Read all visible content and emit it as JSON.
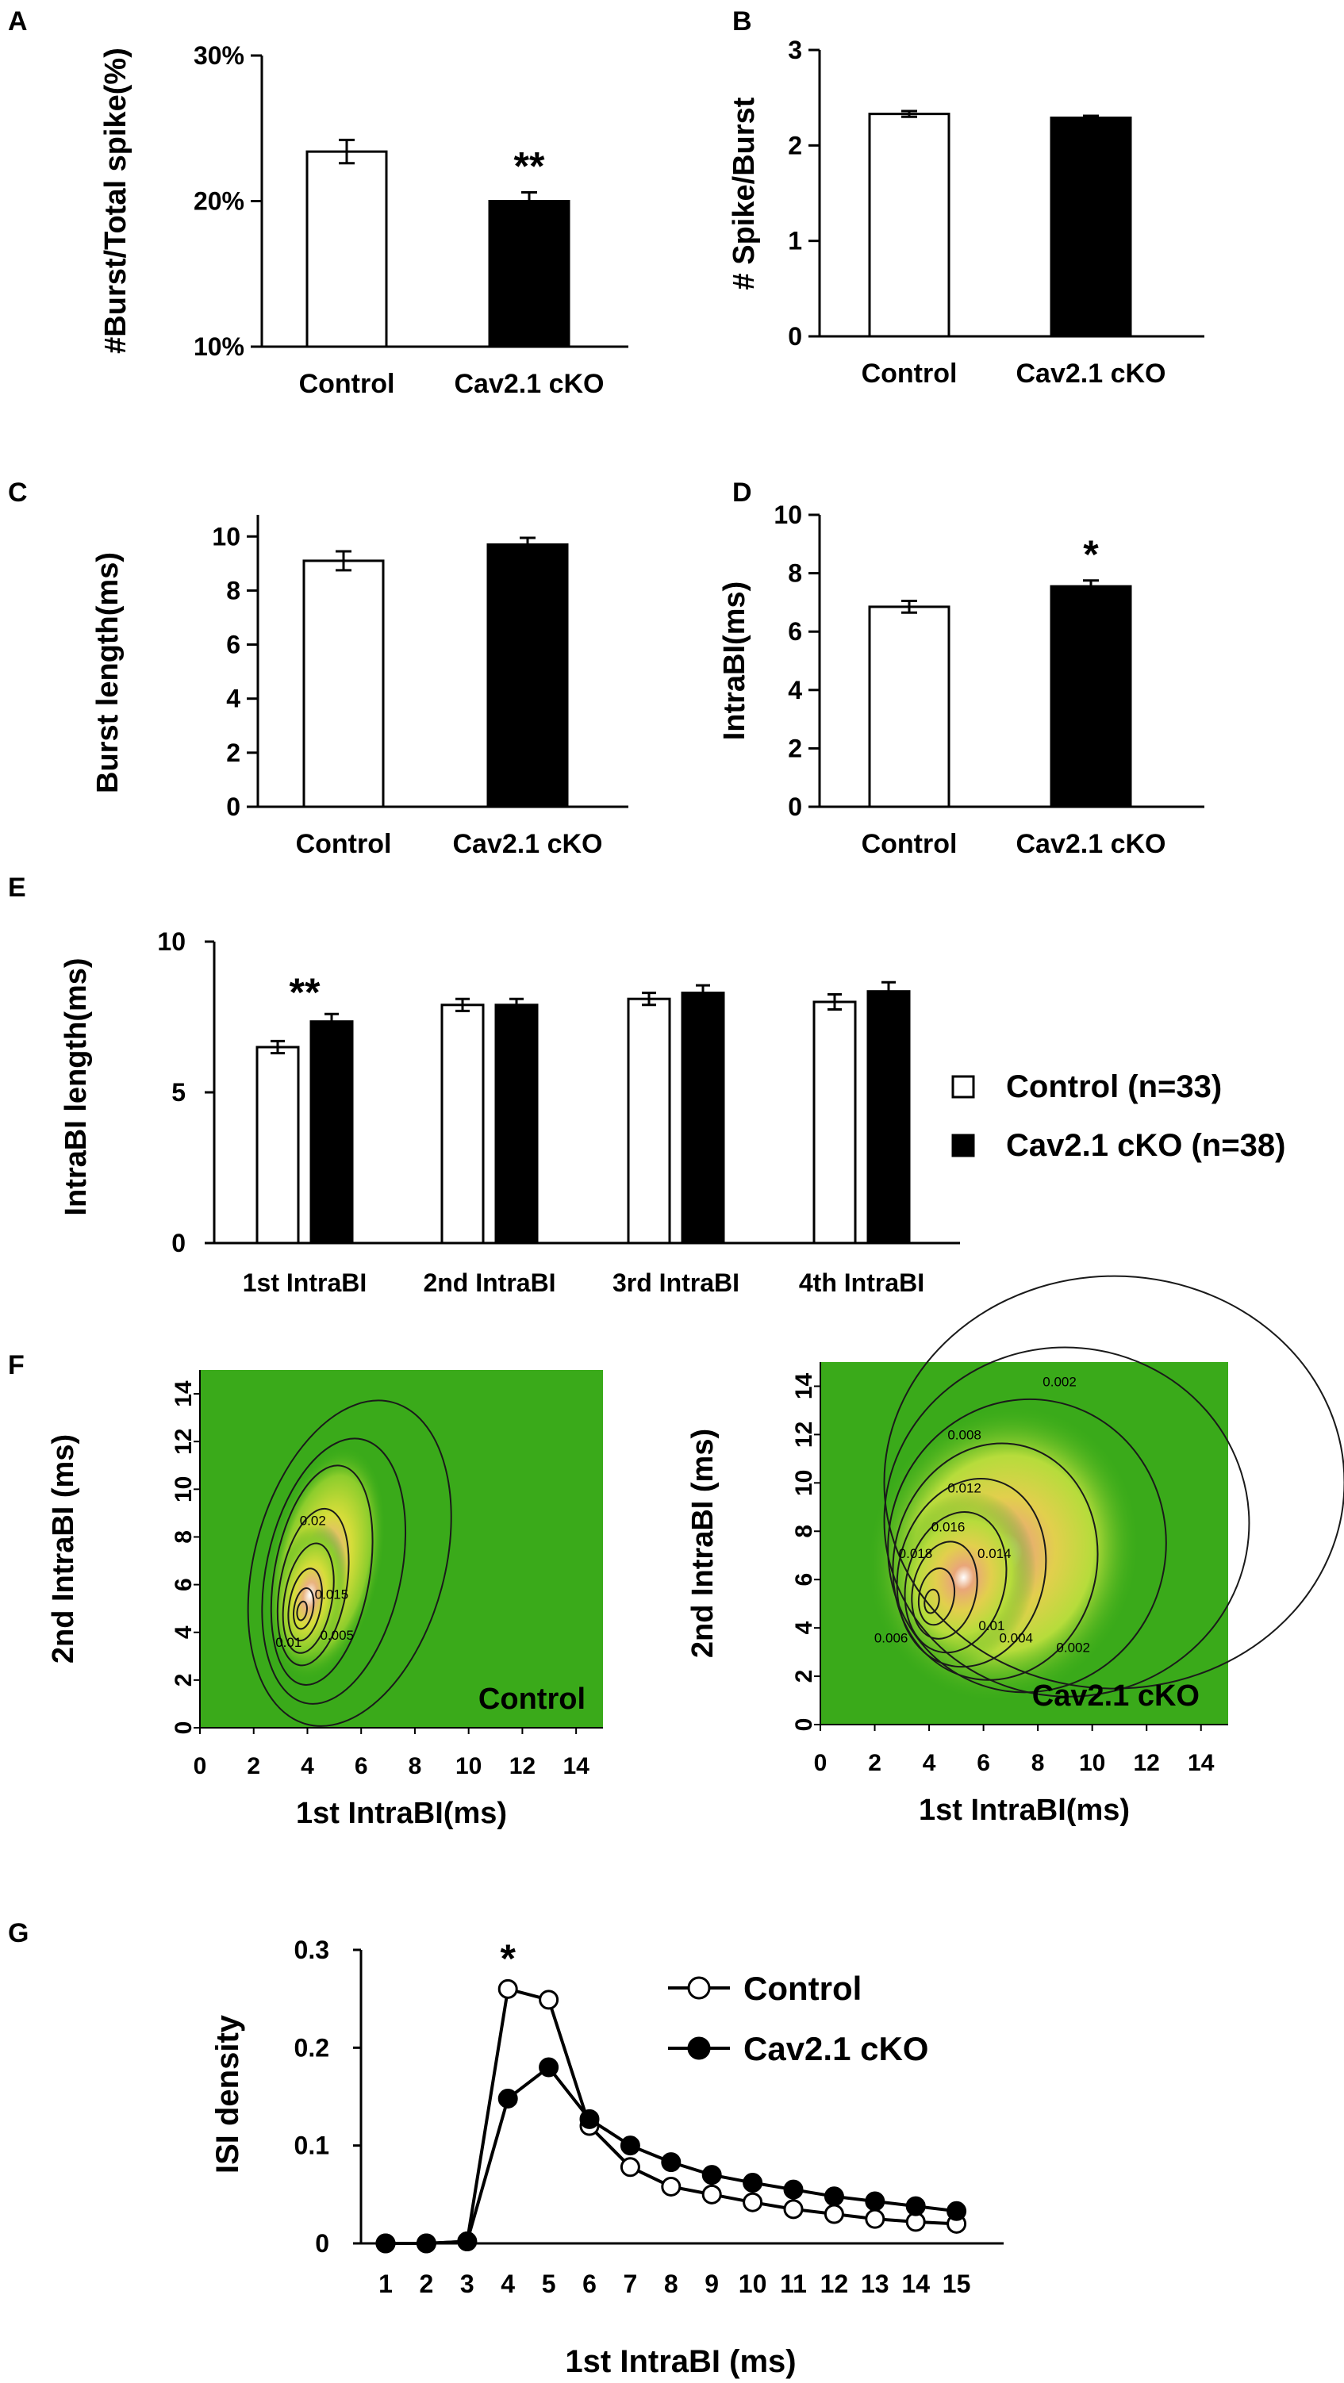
{
  "chart_data": [
    {
      "panel": "A",
      "type": "bar",
      "categories": [
        "Control",
        "Cav2.1 cKO"
      ],
      "values": [
        23.4,
        20.0
      ],
      "errors": [
        0.8,
        0.6
      ],
      "ylabel": "#Burst/Total spike(%)",
      "ylim": [
        10,
        30
      ],
      "yticks": [
        10,
        20,
        30
      ],
      "ytick_labels": [
        "10%",
        "20%",
        "30%"
      ],
      "significance": [
        "",
        "**"
      ],
      "colors": [
        "#ffffff",
        "#000000"
      ]
    },
    {
      "panel": "B",
      "type": "bar",
      "categories": [
        "Control",
        "Cav2.1 cKO"
      ],
      "values": [
        2.33,
        2.29
      ],
      "errors": [
        0.03,
        0.02
      ],
      "ylabel": "# Spike/Burst",
      "ylim": [
        0,
        3
      ],
      "yticks": [
        0,
        1,
        2,
        3
      ],
      "ytick_labels": [
        "0",
        "1",
        "2",
        "3"
      ],
      "significance": [
        "",
        ""
      ],
      "colors": [
        "#ffffff",
        "#000000"
      ]
    },
    {
      "panel": "C",
      "type": "bar",
      "categories": [
        "Control",
        "Cav2.1 cKO"
      ],
      "values": [
        9.1,
        9.7
      ],
      "errors": [
        0.35,
        0.25
      ],
      "ylabel": "Burst length(ms)",
      "ylim": [
        0,
        10.8
      ],
      "yticks": [
        0,
        2,
        4,
        6,
        8,
        10
      ],
      "ytick_labels": [
        "0",
        "2",
        "4",
        "6",
        "8",
        "10"
      ],
      "significance": [
        "",
        ""
      ],
      "colors": [
        "#ffffff",
        "#000000"
      ]
    },
    {
      "panel": "D",
      "type": "bar",
      "categories": [
        "Control",
        "Cav2.1 cKO"
      ],
      "values": [
        6.85,
        7.55
      ],
      "errors": [
        0.2,
        0.2
      ],
      "ylabel": "IntraBI(ms)",
      "ylim": [
        0,
        10
      ],
      "yticks": [
        0,
        2,
        4,
        6,
        8,
        10
      ],
      "ytick_labels": [
        "0",
        "2",
        "4",
        "6",
        "8",
        "10"
      ],
      "significance": [
        "",
        "*"
      ],
      "colors": [
        "#ffffff",
        "#000000"
      ]
    },
    {
      "panel": "E",
      "type": "bar",
      "categories": [
        "1st IntraBI",
        "2nd IntraBI",
        "3rd IntraBI",
        "4th IntraBI"
      ],
      "series": [
        {
          "name": "Control (n=33)",
          "values": [
            6.5,
            7.9,
            8.1,
            8.0
          ],
          "errors": [
            0.2,
            0.2,
            0.2,
            0.25
          ],
          "color": "#ffffff"
        },
        {
          "name": "Cav2.1 cKO (n=38)",
          "values": [
            7.35,
            7.9,
            8.3,
            8.35
          ],
          "errors": [
            0.25,
            0.2,
            0.25,
            0.3
          ],
          "color": "#000000"
        }
      ],
      "ylabel": "IntraBI length(ms)",
      "ylim": [
        0,
        10
      ],
      "yticks": [
        0,
        5,
        10
      ],
      "ytick_labels": [
        "0",
        "5",
        "10"
      ],
      "significance": [
        "**",
        "",
        "",
        ""
      ],
      "legend": "right"
    },
    {
      "panel": "F",
      "type": "heatmap",
      "subplots": [
        {
          "name": "Control",
          "peak": [
            3.8,
            4.9
          ],
          "xlabel": "1st IntraBI(ms)",
          "ylabel": "2nd IntraBI (ms)",
          "xlim": [
            0,
            15
          ],
          "ylim": [
            0,
            15
          ],
          "xticks": [
            0,
            2,
            4,
            6,
            8,
            10,
            12,
            14
          ],
          "yticks": [
            0,
            2,
            4,
            6,
            8,
            10,
            12,
            14
          ],
          "contour_labels": [
            {
              "text": "0.005",
              "x": 5.1,
              "y": 3.7
            },
            {
              "text": "0.015",
              "x": 4.9,
              "y": 5.4
            },
            {
              "text": "0.02",
              "x": 4.2,
              "y": 8.5
            },
            {
              "text": "0.01",
              "x": 3.3,
              "y": 3.4
            }
          ]
        },
        {
          "name": "Cav2.1 cKO",
          "peak": [
            4.1,
            5.1
          ],
          "xlabel": "1st IntraBI(ms)",
          "ylabel": "2nd IntraBI (ms)",
          "xlim": [
            0,
            15
          ],
          "ylim": [
            0,
            15
          ],
          "xticks": [
            0,
            2,
            4,
            6,
            8,
            10,
            12,
            14
          ],
          "yticks": [
            0,
            2,
            4,
            6,
            8,
            10,
            12,
            14
          ],
          "contour_labels": [
            {
              "text": "0.002",
              "x": 8.8,
              "y": 14.0
            },
            {
              "text": "0.008",
              "x": 5.3,
              "y": 11.8
            },
            {
              "text": "0.012",
              "x": 5.3,
              "y": 9.6
            },
            {
              "text": "0.016",
              "x": 4.7,
              "y": 8.0
            },
            {
              "text": "0.014",
              "x": 6.4,
              "y": 6.9
            },
            {
              "text": "0.01",
              "x": 6.3,
              "y": 3.9
            },
            {
              "text": "0.004",
              "x": 7.2,
              "y": 3.4
            },
            {
              "text": "0.002",
              "x": 9.3,
              "y": 3.0
            },
            {
              "text": "0.006",
              "x": 2.6,
              "y": 3.4
            },
            {
              "text": "0.018",
              "x": 3.5,
              "y": 6.9
            }
          ]
        }
      ]
    },
    {
      "panel": "G",
      "type": "line",
      "x": [
        1,
        2,
        3,
        4,
        5,
        6,
        7,
        8,
        9,
        10,
        11,
        12,
        13,
        14,
        15
      ],
      "series": [
        {
          "name": "Control",
          "values": [
            0,
            0,
            0.002,
            0.26,
            0.249,
            0.12,
            0.078,
            0.058,
            0.05,
            0.042,
            0.035,
            0.03,
            0.025,
            0.022,
            0.02
          ],
          "marker": "open-circle"
        },
        {
          "name": "Cav2.1 cKO",
          "values": [
            0,
            0,
            0.002,
            0.148,
            0.18,
            0.127,
            0.1,
            0.083,
            0.07,
            0.062,
            0.055,
            0.048,
            0.043,
            0.038,
            0.033
          ],
          "marker": "filled-circle"
        }
      ],
      "xlabel": "1st IntraBI (ms)",
      "ylabel": "ISI density",
      "ylim": [
        0,
        0.3
      ],
      "yticks": [
        0,
        0.1,
        0.2,
        0.3
      ],
      "ytick_labels": [
        "0",
        "0.1",
        "0.2",
        "0.3"
      ],
      "annotations": [
        {
          "text": "*",
          "x": 4
        }
      ],
      "legend": "top-right"
    }
  ]
}
